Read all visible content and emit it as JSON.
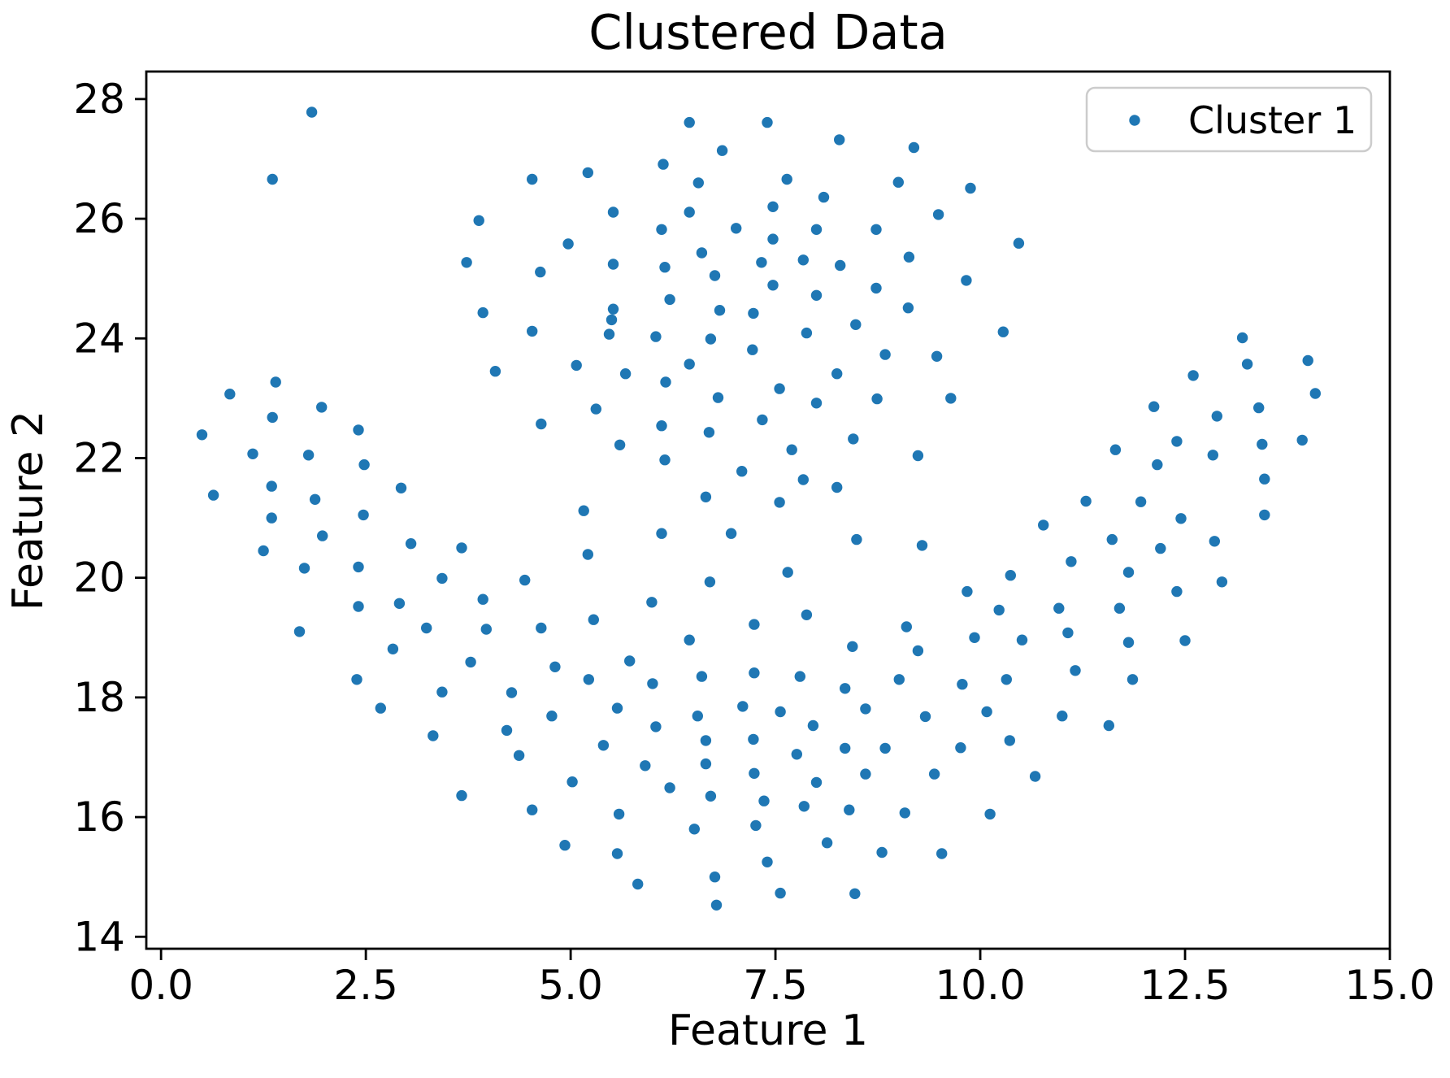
{
  "figure": {
    "background": "#ffffff",
    "spine_color": "#000000"
  },
  "chart_data": {
    "type": "scatter",
    "title": "Clustered Data",
    "xlabel": "Feature 1",
    "ylabel": "Feature 2",
    "xlim": [
      -0.18,
      15.0
    ],
    "ylim": [
      13.8,
      28.46
    ],
    "grid": false,
    "xticks": {
      "values": [
        0.0,
        2.5,
        5.0,
        7.5,
        10.0,
        12.5,
        15.0
      ],
      "labels": [
        "0.0",
        "2.5",
        "5.0",
        "7.5",
        "10.0",
        "12.5",
        "15.0"
      ]
    },
    "yticks": {
      "values": [
        14,
        16,
        18,
        20,
        22,
        24,
        26,
        28
      ],
      "labels": [
        "14",
        "16",
        "18",
        "20",
        "22",
        "24",
        "26",
        "28"
      ]
    },
    "legend": {
      "label": "Cluster 1",
      "location": "upper right",
      "marker": "dot-icon"
    },
    "point_color": "#1f77b4",
    "marker_radius_px": 6.7,
    "series": [
      {
        "name": "Cluster 1",
        "points": [
          [
            1.84,
            27.78
          ],
          [
            1.36,
            26.66
          ],
          [
            6.45,
            27.61
          ],
          [
            7.4,
            27.61
          ],
          [
            6.85,
            27.14
          ],
          [
            6.13,
            26.91
          ],
          [
            4.53,
            26.66
          ],
          [
            5.21,
            26.77
          ],
          [
            6.56,
            26.6
          ],
          [
            5.52,
            26.11
          ],
          [
            6.45,
            26.11
          ],
          [
            3.88,
            25.97
          ],
          [
            6.11,
            25.82
          ],
          [
            7.02,
            25.84
          ],
          [
            4.97,
            25.58
          ],
          [
            3.73,
            25.27
          ],
          [
            5.52,
            25.24
          ],
          [
            4.63,
            25.11
          ],
          [
            6.15,
            25.19
          ],
          [
            6.6,
            25.43
          ],
          [
            6.76,
            25.05
          ],
          [
            7.33,
            25.27
          ],
          [
            6.21,
            24.65
          ],
          [
            3.93,
            24.43
          ],
          [
            5.52,
            24.49
          ],
          [
            5.5,
            24.31
          ],
          [
            5.47,
            24.07
          ],
          [
            6.82,
            24.47
          ],
          [
            7.23,
            24.42
          ],
          [
            4.53,
            24.12
          ],
          [
            6.04,
            24.03
          ],
          [
            6.71,
            23.99
          ],
          [
            7.22,
            23.81
          ],
          [
            8.28,
            27.32
          ],
          [
            9.19,
            27.19
          ],
          [
            7.64,
            26.66
          ],
          [
            9.0,
            26.61
          ],
          [
            9.88,
            26.51
          ],
          [
            8.09,
            26.36
          ],
          [
            9.49,
            26.07
          ],
          [
            7.47,
            26.2
          ],
          [
            8.0,
            25.82
          ],
          [
            8.73,
            25.82
          ],
          [
            7.47,
            25.66
          ],
          [
            10.47,
            25.59
          ],
          [
            7.84,
            25.31
          ],
          [
            8.29,
            25.22
          ],
          [
            9.13,
            25.36
          ],
          [
            7.47,
            24.89
          ],
          [
            9.83,
            24.97
          ],
          [
            8.0,
            24.72
          ],
          [
            8.73,
            24.84
          ],
          [
            9.12,
            24.51
          ],
          [
            8.48,
            24.23
          ],
          [
            7.88,
            24.09
          ],
          [
            10.28,
            24.11
          ],
          [
            8.84,
            23.73
          ],
          [
            9.47,
            23.7
          ],
          [
            13.2,
            24.01
          ],
          [
            13.26,
            23.57
          ],
          [
            14.0,
            23.63
          ],
          [
            1.4,
            23.27
          ],
          [
            0.84,
            23.07
          ],
          [
            1.96,
            22.85
          ],
          [
            1.36,
            22.68
          ],
          [
            0.5,
            22.39
          ],
          [
            1.12,
            22.07
          ],
          [
            1.8,
            22.05
          ],
          [
            2.41,
            22.47
          ],
          [
            2.48,
            21.89
          ],
          [
            1.35,
            21.53
          ],
          [
            0.64,
            21.38
          ],
          [
            1.88,
            21.31
          ],
          [
            2.47,
            21.05
          ],
          [
            1.35,
            21.0
          ],
          [
            1.97,
            20.7
          ],
          [
            1.25,
            20.45
          ],
          [
            1.75,
            20.16
          ],
          [
            2.41,
            20.18
          ],
          [
            3.05,
            20.57
          ],
          [
            2.93,
            21.5
          ],
          [
            2.41,
            19.52
          ],
          [
            2.91,
            19.57
          ],
          [
            1.69,
            19.1
          ],
          [
            2.83,
            18.81
          ],
          [
            3.24,
            19.16
          ],
          [
            3.43,
            19.99
          ],
          [
            4.08,
            23.45
          ],
          [
            5.07,
            23.55
          ],
          [
            5.67,
            23.41
          ],
          [
            6.16,
            23.27
          ],
          [
            6.45,
            23.57
          ],
          [
            6.8,
            23.01
          ],
          [
            5.31,
            22.82
          ],
          [
            4.64,
            22.57
          ],
          [
            6.11,
            22.54
          ],
          [
            6.69,
            22.43
          ],
          [
            7.34,
            22.64
          ],
          [
            5.6,
            22.22
          ],
          [
            6.15,
            21.97
          ],
          [
            7.09,
            21.78
          ],
          [
            6.65,
            21.35
          ],
          [
            5.16,
            21.12
          ],
          [
            6.11,
            20.74
          ],
          [
            6.96,
            20.74
          ],
          [
            3.67,
            20.5
          ],
          [
            5.21,
            20.39
          ],
          [
            4.44,
            19.96
          ],
          [
            6.7,
            19.93
          ],
          [
            3.93,
            19.64
          ],
          [
            5.99,
            19.59
          ],
          [
            5.28,
            19.3
          ],
          [
            4.64,
            19.16
          ],
          [
            3.97,
            19.14
          ],
          [
            7.24,
            19.22
          ],
          [
            6.45,
            18.96
          ],
          [
            8.25,
            23.41
          ],
          [
            7.55,
            23.16
          ],
          [
            8.0,
            22.92
          ],
          [
            8.74,
            22.99
          ],
          [
            9.64,
            23.0
          ],
          [
            8.45,
            22.32
          ],
          [
            7.7,
            22.14
          ],
          [
            9.24,
            22.04
          ],
          [
            7.84,
            21.64
          ],
          [
            8.25,
            21.51
          ],
          [
            7.55,
            21.26
          ],
          [
            11.29,
            21.28
          ],
          [
            10.77,
            20.88
          ],
          [
            8.49,
            20.64
          ],
          [
            9.29,
            20.54
          ],
          [
            11.11,
            20.27
          ],
          [
            7.65,
            20.09
          ],
          [
            10.37,
            20.04
          ],
          [
            9.84,
            19.77
          ],
          [
            10.23,
            19.46
          ],
          [
            10.96,
            19.49
          ],
          [
            7.88,
            19.38
          ],
          [
            9.1,
            19.18
          ],
          [
            11.07,
            19.08
          ],
          [
            9.93,
            19.0
          ],
          [
            10.51,
            18.96
          ],
          [
            8.44,
            18.85
          ],
          [
            9.24,
            18.78
          ],
          [
            12.6,
            23.38
          ],
          [
            14.09,
            23.08
          ],
          [
            12.12,
            22.86
          ],
          [
            13.4,
            22.84
          ],
          [
            12.89,
            22.7
          ],
          [
            12.4,
            22.28
          ],
          [
            13.44,
            22.23
          ],
          [
            13.93,
            22.3
          ],
          [
            11.65,
            22.14
          ],
          [
            12.84,
            22.05
          ],
          [
            12.16,
            21.89
          ],
          [
            13.47,
            21.65
          ],
          [
            11.96,
            21.27
          ],
          [
            12.45,
            20.99
          ],
          [
            13.47,
            21.05
          ],
          [
            11.61,
            20.64
          ],
          [
            12.2,
            20.49
          ],
          [
            12.86,
            20.61
          ],
          [
            11.81,
            20.09
          ],
          [
            12.4,
            19.77
          ],
          [
            12.95,
            19.93
          ],
          [
            11.7,
            19.49
          ],
          [
            11.81,
            18.92
          ],
          [
            12.5,
            18.95
          ],
          [
            2.39,
            18.3
          ],
          [
            2.68,
            17.82
          ],
          [
            3.43,
            18.09
          ],
          [
            3.32,
            17.36
          ],
          [
            3.78,
            18.59
          ],
          [
            4.81,
            18.51
          ],
          [
            5.22,
            18.3
          ],
          [
            5.72,
            18.61
          ],
          [
            4.28,
            18.08
          ],
          [
            6.0,
            18.23
          ],
          [
            6.6,
            18.35
          ],
          [
            7.24,
            18.41
          ],
          [
            5.57,
            17.82
          ],
          [
            4.77,
            17.69
          ],
          [
            4.22,
            17.45
          ],
          [
            6.04,
            17.51
          ],
          [
            6.55,
            17.69
          ],
          [
            7.1,
            17.85
          ],
          [
            5.4,
            17.2
          ],
          [
            6.65,
            17.28
          ],
          [
            7.23,
            17.3
          ],
          [
            4.37,
            17.03
          ],
          [
            5.91,
            16.86
          ],
          [
            6.65,
            16.89
          ],
          [
            7.24,
            16.73
          ],
          [
            5.02,
            16.59
          ],
          [
            6.21,
            16.49
          ],
          [
            6.71,
            16.35
          ],
          [
            3.67,
            16.36
          ],
          [
            4.53,
            16.12
          ],
          [
            5.59,
            16.05
          ],
          [
            7.36,
            16.27
          ],
          [
            6.51,
            15.8
          ],
          [
            7.26,
            15.86
          ],
          [
            4.93,
            15.53
          ],
          [
            5.57,
            15.39
          ],
          [
            7.4,
            15.25
          ],
          [
            6.76,
            15.0
          ],
          [
            5.82,
            14.88
          ],
          [
            6.78,
            14.53
          ],
          [
            7.8,
            18.35
          ],
          [
            8.35,
            18.15
          ],
          [
            9.01,
            18.3
          ],
          [
            9.78,
            18.22
          ],
          [
            10.32,
            18.3
          ],
          [
            11.16,
            18.45
          ],
          [
            7.56,
            17.76
          ],
          [
            7.96,
            17.53
          ],
          [
            8.6,
            17.81
          ],
          [
            9.33,
            17.68
          ],
          [
            10.08,
            17.76
          ],
          [
            11.0,
            17.69
          ],
          [
            10.36,
            17.28
          ],
          [
            7.76,
            17.05
          ],
          [
            8.35,
            17.15
          ],
          [
            8.84,
            17.15
          ],
          [
            9.76,
            17.16
          ],
          [
            8.6,
            16.72
          ],
          [
            9.44,
            16.72
          ],
          [
            10.67,
            16.68
          ],
          [
            8.0,
            16.58
          ],
          [
            7.85,
            16.18
          ],
          [
            8.4,
            16.12
          ],
          [
            9.08,
            16.07
          ],
          [
            10.12,
            16.05
          ],
          [
            8.13,
            15.57
          ],
          [
            8.8,
            15.41
          ],
          [
            9.53,
            15.39
          ],
          [
            7.56,
            14.73
          ],
          [
            8.47,
            14.72
          ],
          [
            11.86,
            18.3
          ],
          [
            11.57,
            17.53
          ]
        ]
      }
    ]
  }
}
